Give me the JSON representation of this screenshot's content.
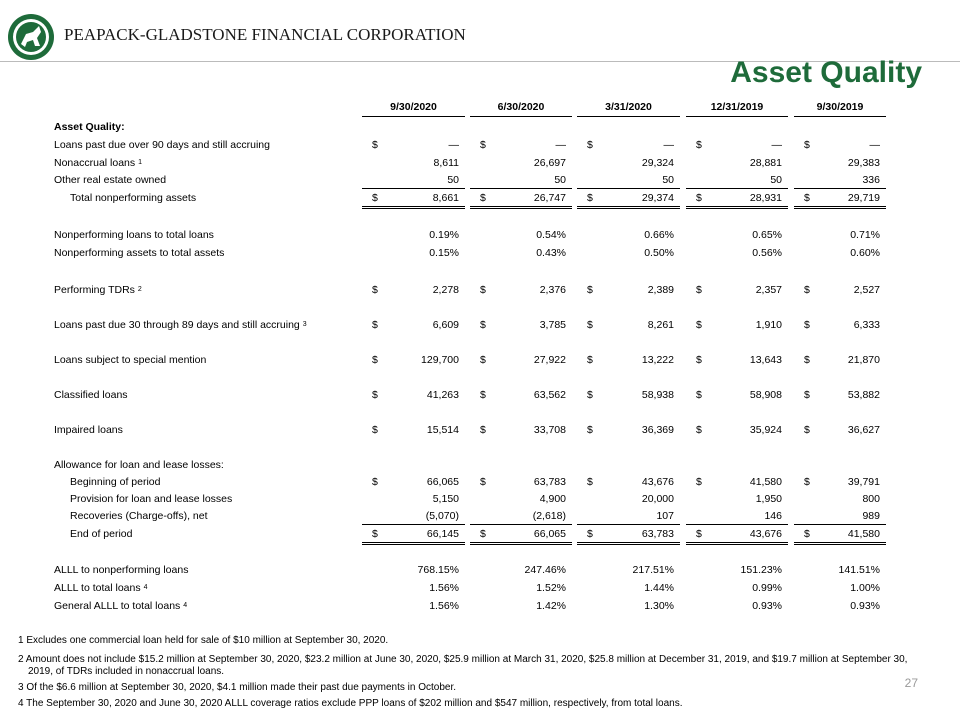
{
  "header": {
    "company": "PEAPACK-GLADSTONE FINANCIAL CORPORATION",
    "title": "Asset Quality"
  },
  "table": {
    "columns": [
      "9/30/2020",
      "6/30/2020",
      "3/31/2020",
      "12/31/2019",
      "9/30/2019"
    ],
    "rows": [
      {
        "label": "Asset Quality:"
      },
      {
        "label": "Loans past due over 90 days and still accruing",
        "currency": "$",
        "cells": [
          "—",
          "—",
          "—",
          "—",
          "—"
        ]
      },
      {
        "label": "Nonaccrual loans",
        "note": "1",
        "cells": [
          "8,611",
          "26,697",
          "29,324",
          "28,881",
          "29,383"
        ]
      },
      {
        "label": "Other real estate owned",
        "cells": [
          "50",
          "50",
          "50",
          "50",
          "336"
        ]
      },
      {
        "label": "Total nonperforming assets",
        "currency": "$",
        "cells": [
          "8,661",
          "26,747",
          "29,374",
          "28,931",
          "29,719"
        ]
      },
      {
        "label": "Nonperforming loans to total loans",
        "cells": [
          "0.19%",
          "0.54%",
          "0.66%",
          "0.65%",
          "0.71%"
        ]
      },
      {
        "label": "Nonperforming assets to total assets",
        "cells": [
          "0.15%",
          "0.43%",
          "0.50%",
          "0.56%",
          "0.60%"
        ]
      },
      {
        "label": "Performing TDRs",
        "note": "2",
        "currency": "$",
        "cells": [
          "2,278",
          "2,376",
          "2,389",
          "2,357",
          "2,527"
        ]
      },
      {
        "label": "Loans past due 30 through 89 days and still accruing",
        "note": "3",
        "currency": "$",
        "cells": [
          "6,609",
          "3,785",
          "8,261",
          "1,910",
          "6,333"
        ]
      },
      {
        "label": "Loans subject to special mention",
        "currency": "$",
        "cells": [
          "129,700",
          "27,922",
          "13,222",
          "13,643",
          "21,870"
        ]
      },
      {
        "label": "Classified loans",
        "currency": "$",
        "cells": [
          "41,263",
          "63,562",
          "58,938",
          "58,908",
          "53,882"
        ]
      },
      {
        "label": "Impaired loans",
        "currency": "$",
        "cells": [
          "15,514",
          "33,708",
          "36,369",
          "35,924",
          "36,627"
        ]
      },
      {
        "label": "Allowance for loan and lease losses:"
      },
      {
        "label": "Beginning of period",
        "currency": "$",
        "cells": [
          "66,065",
          "63,783",
          "43,676",
          "41,580",
          "39,791"
        ]
      },
      {
        "label": "Provision for loan and lease losses",
        "cells": [
          "5,150",
          "4,900",
          "20,000",
          "1,950",
          "800"
        ]
      },
      {
        "label": "Recoveries (Charge-offs), net",
        "cells": [
          "(5,070)",
          "(2,618)",
          "107",
          "146",
          "989"
        ]
      },
      {
        "label": "End of period",
        "currency": "$",
        "cells": [
          "66,145",
          "66,065",
          "63,783",
          "43,676",
          "41,580"
        ]
      },
      {
        "label": "ALLL to nonperforming loans",
        "cells": [
          "768.15%",
          "247.46%",
          "217.51%",
          "151.23%",
          "141.51%"
        ]
      },
      {
        "label": "ALLL to total loans",
        "note": "4",
        "cells": [
          "1.56%",
          "1.52%",
          "1.44%",
          "0.99%",
          "1.00%"
        ]
      },
      {
        "label": "General ALLL to total loans",
        "note": "4",
        "cells": [
          "1.56%",
          "1.42%",
          "1.30%",
          "0.93%",
          "0.93%"
        ]
      }
    ]
  },
  "footnotes": [
    "1 Excludes one commercial loan held for sale of $10 million at September 30, 2020.",
    "2 Amount does not include $15.2 million at September 30, 2020, $23.2 million at June 30, 2020, $25.9 million at March 31, 2020, $25.8 million at December 31, 2019, and $19.7 million at September 30, 2019, of TDRs included in nonaccrual loans.",
    "3 Of the $6.6 million at September 30, 2020, $4.1 million made their past due payments in October.",
    "4 The September 30, 2020 and June 30, 2020 ALLL coverage ratios exclude PPP loans of $202 million and $547 million, respectively, from total loans."
  ],
  "page_number": "27"
}
